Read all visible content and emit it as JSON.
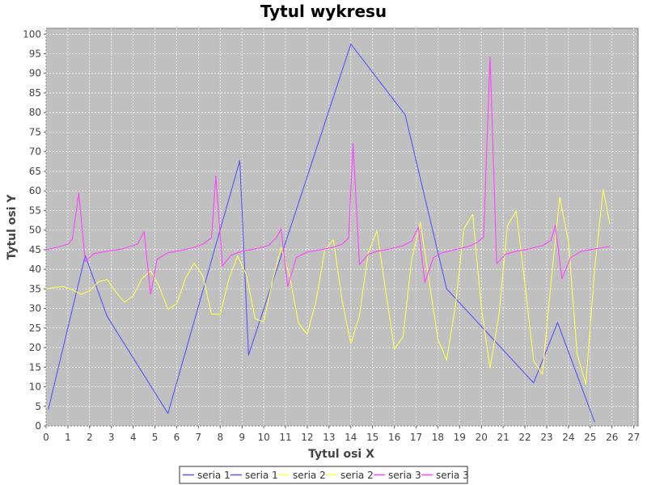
{
  "chart_data": {
    "type": "line",
    "title": "Tytul wykresu",
    "xlabel": "Tytul osi X",
    "ylabel": "Tytul osi Y",
    "xlim": [
      0,
      27.2
    ],
    "ylim": [
      0,
      101.5
    ],
    "x_ticks": [
      0,
      1,
      2,
      3,
      4,
      5,
      6,
      7,
      8,
      9,
      10,
      11,
      12,
      13,
      14,
      15,
      16,
      17,
      18,
      19,
      20,
      21,
      22,
      23,
      24,
      25,
      26,
      27
    ],
    "y_ticks": [
      0,
      5,
      10,
      15,
      20,
      25,
      30,
      35,
      40,
      45,
      50,
      55,
      60,
      65,
      70,
      75,
      80,
      85,
      90,
      95,
      100
    ],
    "grid": true,
    "plot_background": "#c0c0c0",
    "legend_position": "bottom",
    "legend": [
      "seria 1",
      "seria 1",
      "seria 2",
      "seria 2",
      "seria 3",
      "seria 3"
    ],
    "series": [
      {
        "name": "seria 1",
        "color": "#5555ff",
        "x": [
          0.1,
          1.8,
          2.8,
          5.6,
          8.9,
          9.3,
          14.0,
          16.5,
          18.4,
          22.4,
          23.5,
          25.2
        ],
        "y": [
          4.2,
          43.5,
          28.0,
          3.2,
          67.7,
          18.1,
          97.5,
          79.4,
          35.0,
          11.0,
          26.4,
          1.0
        ]
      },
      {
        "name": "seria 2",
        "color": "#ffff55",
        "x": [
          0.0,
          0.4,
          0.8,
          1.2,
          1.6,
          2.0,
          2.4,
          2.8,
          3.2,
          3.6,
          4.0,
          4.4,
          4.8,
          5.2,
          5.6,
          6.0,
          6.4,
          6.8,
          7.2,
          7.6,
          8.0,
          8.4,
          8.8,
          9.2,
          9.6,
          10.0,
          10.4,
          10.8,
          11.2,
          11.6,
          12.0,
          12.4,
          12.8,
          13.2,
          13.6,
          14.0,
          14.4,
          14.8,
          15.2,
          15.6,
          16.0,
          16.4,
          16.8,
          17.2,
          17.6,
          18.0,
          18.4,
          18.8,
          19.2,
          19.6,
          20.0,
          20.4,
          20.8,
          21.2,
          21.6,
          22.0,
          22.4,
          22.8,
          23.2,
          23.6,
          24.0,
          24.4,
          24.8,
          25.2,
          25.6,
          25.9
        ],
        "y": [
          35.0,
          35.4,
          35.6,
          34.8,
          33.6,
          34.5,
          36.8,
          37.4,
          34.2,
          31.6,
          33.2,
          37.6,
          39.6,
          35.6,
          29.8,
          31.2,
          37.6,
          41.6,
          38.3,
          28.6,
          28.5,
          37.6,
          43.4,
          38.6,
          27.4,
          26.6,
          37.0,
          45.6,
          38.0,
          26.2,
          23.4,
          31.8,
          44.8,
          47.6,
          32.0,
          21.0,
          28.2,
          44.2,
          49.8,
          34.6,
          19.6,
          22.8,
          42.6,
          52.0,
          37.0,
          22.2,
          16.8,
          30.4,
          50.4,
          54.0,
          30.2,
          14.8,
          28.2,
          51.2,
          54.8,
          36.2,
          16.6,
          13.2,
          36.8,
          58.4,
          47.0,
          18.4,
          10.6,
          40.0,
          60.4,
          51.5
        ]
      },
      {
        "name": "seria 3",
        "color": "#ff44ff",
        "x": [
          0.0,
          0.5,
          1.0,
          1.2,
          1.5,
          1.8,
          2.2,
          2.8,
          3.5,
          4.2,
          4.5,
          4.8,
          5.1,
          5.6,
          6.2,
          6.8,
          7.2,
          7.6,
          7.8,
          8.1,
          8.5,
          9.0,
          9.6,
          10.2,
          10.6,
          10.8,
          11.1,
          11.5,
          12.0,
          12.6,
          13.2,
          13.6,
          13.9,
          14.1,
          14.4,
          14.8,
          15.2,
          15.8,
          16.4,
          16.8,
          17.1,
          17.4,
          17.8,
          18.2,
          18.8,
          19.4,
          19.8,
          20.1,
          20.4,
          20.7,
          21.1,
          21.6,
          22.2,
          22.8,
          23.2,
          23.4,
          23.7,
          24.1,
          24.6,
          25.2,
          25.9
        ],
        "y": [
          45.0,
          45.6,
          46.4,
          47.6,
          59.4,
          42.0,
          44.0,
          44.6,
          45.2,
          46.4,
          49.6,
          33.6,
          42.6,
          44.2,
          44.8,
          45.6,
          46.4,
          48.0,
          63.8,
          40.8,
          43.6,
          44.6,
          45.2,
          46.0,
          48.2,
          50.4,
          35.6,
          43.0,
          44.4,
          45.0,
          45.6,
          46.4,
          48.0,
          72.2,
          41.2,
          43.8,
          44.6,
          45.2,
          46.0,
          47.2,
          50.8,
          36.6,
          43.0,
          44.2,
          45.0,
          45.8,
          46.8,
          48.2,
          94.2,
          41.4,
          43.8,
          44.6,
          45.2,
          46.0,
          47.4,
          51.2,
          37.6,
          43.0,
          44.6,
          45.2,
          45.8
        ]
      }
    ]
  }
}
